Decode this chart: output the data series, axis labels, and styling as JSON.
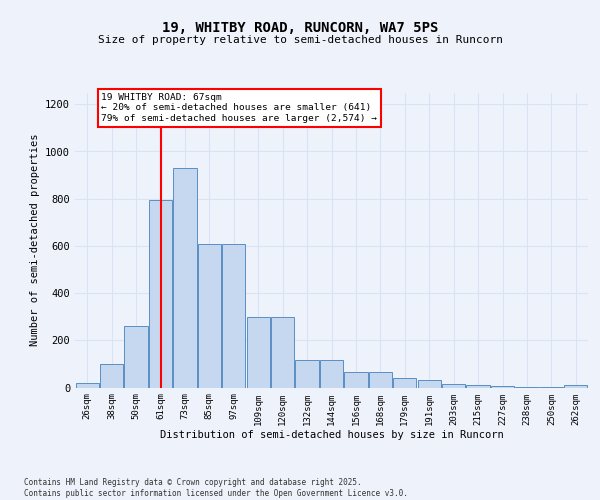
{
  "title_line1": "19, WHITBY ROAD, RUNCORN, WA7 5PS",
  "title_line2": "Size of property relative to semi-detached houses in Runcorn",
  "xlabel": "Distribution of semi-detached houses by size in Runcorn",
  "ylabel": "Number of semi-detached properties",
  "categories": [
    "26sqm",
    "38sqm",
    "50sqm",
    "61sqm",
    "73sqm",
    "85sqm",
    "97sqm",
    "109sqm",
    "120sqm",
    "132sqm",
    "144sqm",
    "156sqm",
    "168sqm",
    "179sqm",
    "191sqm",
    "203sqm",
    "215sqm",
    "227sqm",
    "238sqm",
    "250sqm",
    "262sqm"
  ],
  "values": [
    20,
    100,
    260,
    795,
    930,
    610,
    610,
    300,
    300,
    115,
    115,
    65,
    65,
    40,
    30,
    15,
    10,
    5,
    4,
    2,
    10
  ],
  "bar_color": "#c5d8f0",
  "bar_edge_color": "#5a8fc4",
  "vline_pos": 3.0,
  "marker_label": "19 WHITBY ROAD: 67sqm",
  "smaller_pct": "20% of semi-detached houses are smaller (641)",
  "larger_pct": "79% of semi-detached houses are larger (2,574)",
  "annotation_box_color": "white",
  "annotation_box_edge": "red",
  "vline_color": "red",
  "ylim": [
    0,
    1250
  ],
  "yticks": [
    0,
    200,
    400,
    600,
    800,
    1000,
    1200
  ],
  "footer": "Contains HM Land Registry data © Crown copyright and database right 2025.\nContains public sector information licensed under the Open Government Licence v3.0.",
  "background_color": "#eef2fb",
  "grid_color": "#d8e4f5"
}
